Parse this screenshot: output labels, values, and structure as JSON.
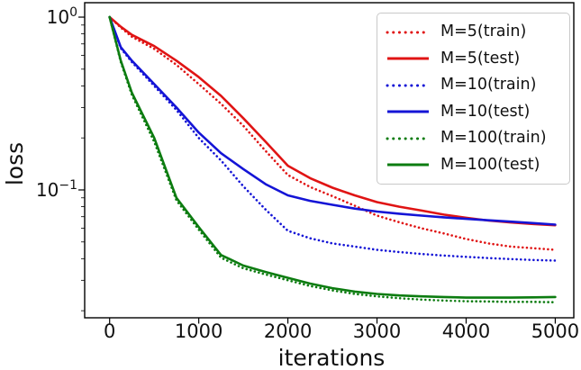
{
  "chart_data": {
    "type": "line",
    "xlabel": "iterations",
    "ylabel": "loss",
    "yscale": "log",
    "grid": false,
    "legend_position": "upper right",
    "xlim": [
      -280,
      5208
    ],
    "ylim": [
      0.0182,
      1.212
    ],
    "xticks": [
      0,
      1000,
      2000,
      3000,
      4000,
      5000
    ],
    "ytick_labels": [
      {
        "base": "10",
        "exp": "0",
        "value": 1
      },
      {
        "base": "10",
        "exp": "−1",
        "value": 0.1
      }
    ],
    "yminor_subs": [
      2,
      3,
      4,
      5,
      6,
      7,
      8,
      9
    ],
    "x": [
      0,
      125,
      250,
      500,
      750,
      1000,
      1250,
      1500,
      1750,
      2000,
      2250,
      2500,
      2750,
      3000,
      3250,
      3500,
      3750,
      4000,
      4250,
      4500,
      4750,
      5000
    ],
    "series": [
      {
        "name": "M=5(train)",
        "style": "dotted",
        "color": "#e01414",
        "values": [
          1.0,
          0.87,
          0.77,
          0.655,
          0.53,
          0.41,
          0.315,
          0.235,
          0.168,
          0.122,
          0.104,
          0.092,
          0.081,
          0.071,
          0.065,
          0.06,
          0.056,
          0.052,
          0.049,
          0.047,
          0.046,
          0.045
        ]
      },
      {
        "name": "M=5(test)",
        "style": "solid",
        "color": "#e01414",
        "values": [
          1.0,
          0.88,
          0.79,
          0.68,
          0.56,
          0.45,
          0.35,
          0.26,
          0.19,
          0.138,
          0.117,
          0.103,
          0.093,
          0.085,
          0.08,
          0.076,
          0.072,
          0.069,
          0.0665,
          0.0648,
          0.0635,
          0.0625
        ]
      },
      {
        "name": "M=10(train)",
        "style": "dotted",
        "color": "#1414d6",
        "values": [
          1.0,
          0.66,
          0.55,
          0.4,
          0.29,
          0.2,
          0.148,
          0.105,
          0.077,
          0.058,
          0.0525,
          0.049,
          0.047,
          0.045,
          0.0437,
          0.0426,
          0.0417,
          0.041,
          0.0403,
          0.0398,
          0.0393,
          0.039
        ]
      },
      {
        "name": "M=10(test)",
        "style": "solid",
        "color": "#1414d6",
        "values": [
          1.0,
          0.67,
          0.56,
          0.41,
          0.3,
          0.215,
          0.163,
          0.132,
          0.108,
          0.093,
          0.0865,
          0.082,
          0.078,
          0.075,
          0.0728,
          0.071,
          0.0694,
          0.068,
          0.0667,
          0.0655,
          0.0643,
          0.063
        ]
      },
      {
        "name": "M=100(train)",
        "style": "dotted",
        "color": "#0c7c10",
        "values": [
          1.0,
          0.55,
          0.355,
          0.19,
          0.087,
          0.059,
          0.0405,
          0.0352,
          0.0324,
          0.03,
          0.0278,
          0.0262,
          0.025,
          0.0242,
          0.0236,
          0.0232,
          0.0229,
          0.0227,
          0.0226,
          0.0225,
          0.0225,
          0.0224
        ]
      },
      {
        "name": "M=100(test)",
        "style": "solid",
        "color": "#0c7c10",
        "values": [
          1.0,
          0.56,
          0.365,
          0.2,
          0.09,
          0.061,
          0.042,
          0.0365,
          0.0335,
          0.031,
          0.0287,
          0.027,
          0.0258,
          0.025,
          0.0245,
          0.0242,
          0.024,
          0.0238,
          0.0238,
          0.0238,
          0.0239,
          0.024
        ]
      }
    ]
  }
}
